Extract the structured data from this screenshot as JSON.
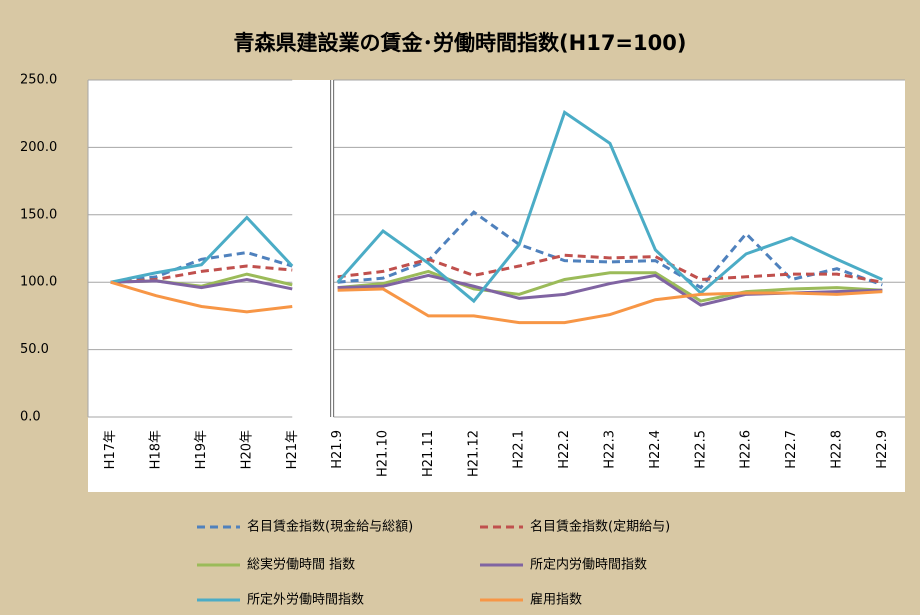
{
  "chart_data": {
    "type": "line",
    "title": "青森県建設業の賃金･労働時間指数(H17=100)",
    "categories": [
      "H17年",
      "H18年",
      "H19年",
      "H20年",
      "H21年",
      "H21.9",
      "H21.10",
      "H21.11",
      "H21.12",
      "H22.1",
      "H22.2",
      "H22.3",
      "H22.4",
      "H22.5",
      "H22.6",
      "H22.7",
      "H22.8",
      "H22.9"
    ],
    "series": [
      {
        "name": "名目賃金指数(現金給与総額)",
        "color": "#4f81bd",
        "style": "dashed",
        "values": [
          100,
          104,
          117,
          122,
          112,
          100,
          103,
          116,
          152,
          128,
          116,
          115,
          116,
          96,
          136,
          102,
          110,
          98
        ]
      },
      {
        "name": "名目賃金指数(定期給与)",
        "color": "#c0504d",
        "style": "dashed",
        "values": [
          100,
          102,
          108,
          112,
          109,
          104,
          108,
          117,
          105,
          112,
          120,
          118,
          119,
          102,
          104,
          106,
          106,
          100
        ]
      },
      {
        "name": "総実労働時間 指数",
        "color": "#9bbb59",
        "style": "solid",
        "values": [
          100,
          101,
          97,
          106,
          98,
          96,
          99,
          108,
          95,
          91,
          102,
          107,
          107,
          86,
          93,
          95,
          96,
          94
        ]
      },
      {
        "name": "所定内労働時間指数",
        "color": "#8064a2",
        "style": "solid",
        "values": [
          100,
          101,
          96,
          102,
          95,
          96,
          97,
          105,
          97,
          88,
          91,
          99,
          105,
          83,
          91,
          92,
          93,
          94
        ]
      },
      {
        "name": "所定外労働時間指数",
        "color": "#4bacc6",
        "style": "solid",
        "values": [
          100,
          107,
          113,
          148,
          112,
          100,
          138,
          114,
          86,
          128,
          226,
          203,
          124,
          92,
          121,
          133,
          117,
          102
        ]
      },
      {
        "name": "雇用指数",
        "color": "#f79646",
        "style": "solid",
        "values": [
          100,
          90,
          82,
          78,
          82,
          94,
          95,
          75,
          75,
          70,
          70,
          76,
          87,
          91,
          92,
          92,
          91,
          93
        ]
      }
    ],
    "ylim": [
      0,
      250
    ],
    "yticks": [
      {
        "value": 0,
        "label": "0.0"
      },
      {
        "value": 50,
        "label": "50.0"
      },
      {
        "value": 100,
        "label": "100.0"
      },
      {
        "value": 150,
        "label": "150.0"
      },
      {
        "value": 200,
        "label": "200.0"
      },
      {
        "value": 250,
        "label": "250.0"
      }
    ],
    "grid": true,
    "legend": "bottom"
  }
}
